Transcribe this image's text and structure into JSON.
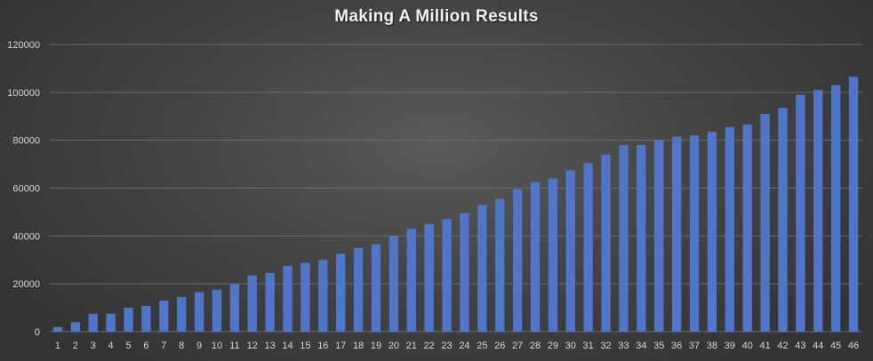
{
  "chart_data": {
    "type": "bar",
    "title": "Making A Million Results",
    "xlabel": "",
    "ylabel": "",
    "ylim": [
      0,
      120000
    ],
    "yticks": [
      0,
      20000,
      40000,
      60000,
      80000,
      100000,
      120000
    ],
    "grid": true,
    "legend": "none",
    "bar_color": "#4f76c9",
    "categories": [
      "1",
      "2",
      "3",
      "4",
      "5",
      "6",
      "7",
      "8",
      "9",
      "10",
      "11",
      "12",
      "13",
      "14",
      "15",
      "16",
      "17",
      "18",
      "19",
      "20",
      "21",
      "22",
      "23",
      "24",
      "25",
      "26",
      "27",
      "28",
      "29",
      "30",
      "31",
      "32",
      "33",
      "34",
      "35",
      "36",
      "37",
      "38",
      "39",
      "40",
      "41",
      "42",
      "43",
      "44",
      "45",
      "46"
    ],
    "values": [
      2000,
      4000,
      7500,
      7500,
      10000,
      10800,
      13000,
      14500,
      16500,
      17500,
      20000,
      23500,
      24500,
      27500,
      28800,
      30000,
      32500,
      35000,
      36500,
      40000,
      43000,
      45000,
      47000,
      49500,
      53000,
      55500,
      59500,
      62500,
      64000,
      67500,
      70500,
      74000,
      78000,
      78000,
      80000,
      81500,
      82000,
      83500,
      85500,
      86500,
      91000,
      93500,
      99000,
      101000,
      103000,
      106500
    ]
  }
}
